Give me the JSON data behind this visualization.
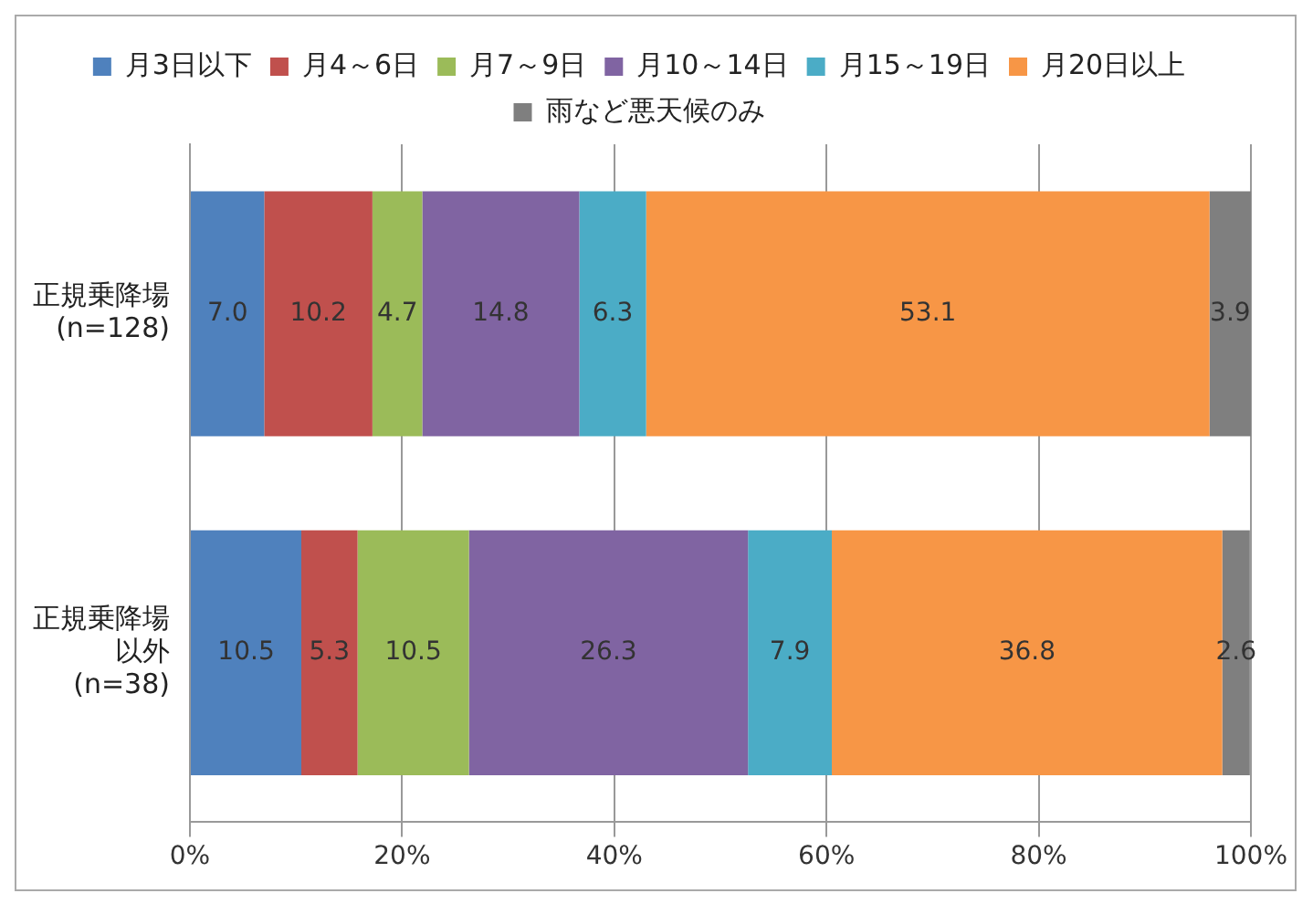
{
  "chart_data": {
    "type": "bar",
    "orientation": "horizontal",
    "stacked": true,
    "categories": [
      "正規乗降場\n(n=128)",
      "正規乗降場以外\n(n=38)"
    ],
    "series": [
      {
        "name": "月3日以下",
        "color": "#4f81bd",
        "values": [
          7.0,
          10.5
        ],
        "value_labels": [
          "7.0",
          "10.5"
        ]
      },
      {
        "name": "月4～6日",
        "color": "#c0504d",
        "values": [
          10.2,
          5.3
        ],
        "value_labels": [
          "10.2",
          "5.3"
        ]
      },
      {
        "name": "月7～9日",
        "color": "#9bbb59",
        "values": [
          4.7,
          10.5
        ],
        "value_labels": [
          "4.7",
          "10.5"
        ]
      },
      {
        "name": "月10～14日",
        "color": "#8064a2",
        "values": [
          14.8,
          26.3
        ],
        "value_labels": [
          "14.8",
          "26.3"
        ]
      },
      {
        "name": "月15～19日",
        "color": "#4bacc6",
        "values": [
          6.3,
          7.9
        ],
        "value_labels": [
          "6.3",
          "7.9"
        ]
      },
      {
        "name": "月20日以上",
        "color": "#f79646",
        "values": [
          53.1,
          36.8
        ],
        "value_labels": [
          "53.1",
          "36.8"
        ]
      },
      {
        "name": "雨など悪天候のみ",
        "color": "#7f7f7f",
        "values": [
          3.9,
          2.6
        ],
        "value_labels": [
          "3.9",
          "2.6"
        ]
      }
    ],
    "xlim": [
      0,
      100
    ],
    "xticks": [
      {
        "value": 0,
        "label": "0%"
      },
      {
        "value": 20,
        "label": "20%"
      },
      {
        "value": 40,
        "label": "40%"
      },
      {
        "value": 60,
        "label": "60%"
      },
      {
        "value": 80,
        "label": "80%"
      },
      {
        "value": 100,
        "label": "100%"
      }
    ],
    "grid": "x",
    "legend": "top"
  }
}
